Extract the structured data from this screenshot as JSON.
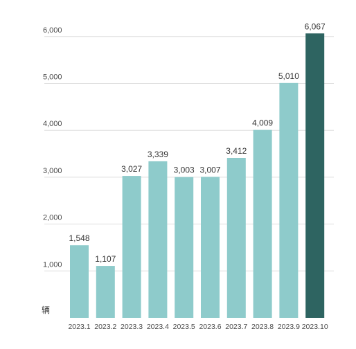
{
  "chart_data": {
    "type": "bar",
    "title": "",
    "xlabel": "",
    "ylabel": "辆",
    "categories": [
      "2023.1",
      "2023.2",
      "2023.3",
      "2023.4",
      "2023.5",
      "2023.6",
      "2023.7",
      "2023.8",
      "2023.9",
      "2023.10"
    ],
    "values": [
      1548,
      1107,
      3027,
      3339,
      3003,
      3007,
      3412,
      4009,
      5010,
      6067
    ],
    "value_labels": [
      "1,548",
      "1,107",
      "3,027",
      "3,339",
      "3,003",
      "3,007",
      "3,412",
      "4,009",
      "5,010",
      "6,067"
    ],
    "yticks": [
      1000,
      2000,
      3000,
      4000,
      5000,
      6000
    ],
    "ytick_labels": [
      "1,000",
      "2,000",
      "3,000",
      "4,000",
      "5,000",
      "6,000"
    ],
    "ylim": [
      0,
      6000
    ],
    "grid": true,
    "legend": "none",
    "colors": {
      "bar": "#8ecbcb",
      "highlight_bar": "#2e6461",
      "highlight_index": 9
    }
  }
}
